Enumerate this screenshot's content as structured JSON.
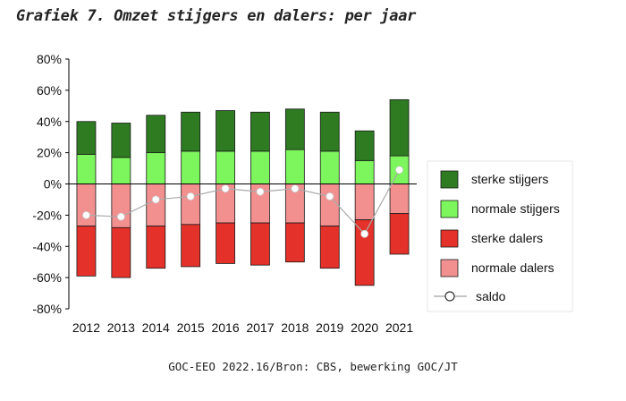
{
  "title": "Grafiek 7. Omzet stijgers en dalers: per jaar",
  "source": "GOC-EEO 2022.16/Bron: CBS, bewerking GOC/JT",
  "chart_data": {
    "type": "bar",
    "stacked": true,
    "categories": [
      "2012",
      "2013",
      "2014",
      "2015",
      "2016",
      "2017",
      "2018",
      "2019",
      "2020",
      "2021"
    ],
    "ylim": [
      -80,
      80
    ],
    "yticks": [
      -80,
      -60,
      -40,
      -20,
      0,
      20,
      40,
      60,
      80
    ],
    "ytick_labels": [
      "-80%",
      "-60%",
      "-40%",
      "-20%",
      "0%",
      "20%",
      "40%",
      "60%",
      "80%"
    ],
    "grid": false,
    "legend_position": "right",
    "series": [
      {
        "name": "sterke stijgers",
        "color": "#2e7b22",
        "values": [
          21,
          22,
          24,
          25,
          26,
          25,
          26,
          25,
          19,
          36
        ]
      },
      {
        "name": "normale stijgers",
        "color": "#7df55d",
        "values": [
          19,
          17,
          20,
          21,
          21,
          21,
          22,
          21,
          15,
          18
        ]
      },
      {
        "name": "sterke dalers",
        "color": "#e4312a",
        "values": [
          -32,
          -32,
          -27,
          -27,
          -26,
          -27,
          -25,
          -27,
          -42,
          -26
        ]
      },
      {
        "name": "normale dalers",
        "color": "#f29090",
        "values": [
          -27,
          -28,
          -27,
          -26,
          -25,
          -25,
          -25,
          -27,
          -23,
          -19
        ]
      },
      {
        "name": "saldo",
        "type": "line",
        "color": "#aaaaaa",
        "values": [
          -20,
          -21,
          -10,
          -8,
          -3,
          -5,
          -3,
          -8,
          -32,
          9
        ]
      }
    ]
  }
}
